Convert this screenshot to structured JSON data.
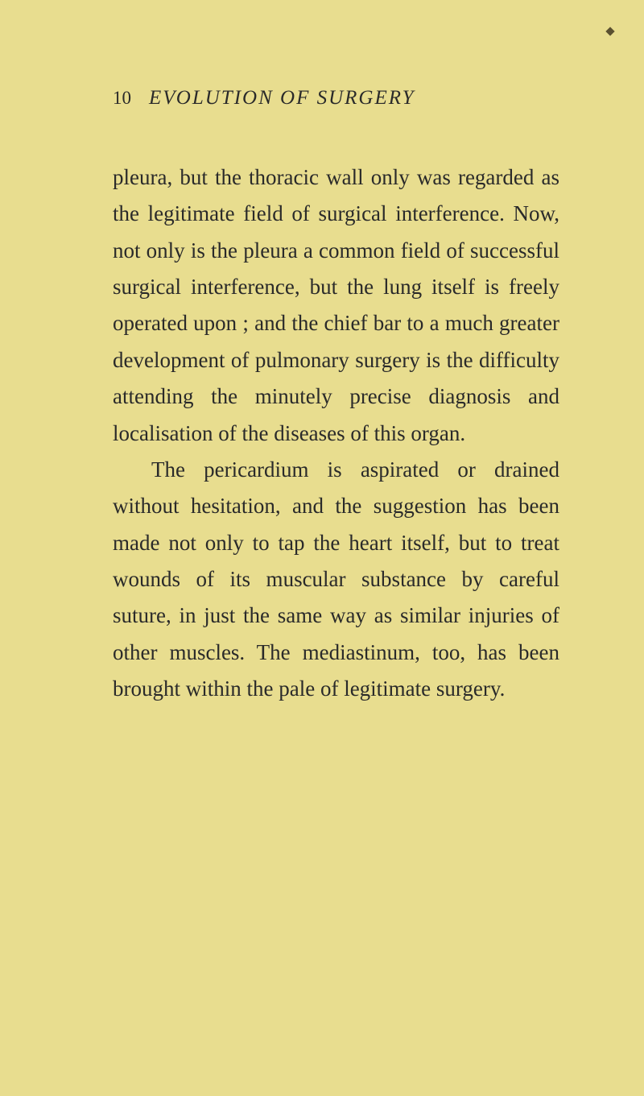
{
  "page_number": "10",
  "header_title": "EVOLUTION OF SURGERY",
  "paragraphs": [
    {
      "text": "pleura, but the thoracic wall only was regarded as the legitimate field of surgical interference. Now, not only is the pleura a common field of successful surgical interference, but the lung itself is freely operated upon ; and the chief bar to a much greater development of pulmonary surgery is the difficulty attending the minutely precise diagnosis and localisation of the diseases of this organ.",
      "indent": false
    },
    {
      "text": "The pericardium is aspirated or drained without hesitation, and the suggestion has been made not only to tap the heart itself, but to treat wounds of its muscular substance by careful suture, in just the same way as similar injuries of other muscles. The mediastinum, too, has been brought within the pale of legitimate surgery.",
      "indent": true
    }
  ],
  "colors": {
    "background": "#e8dd8f",
    "text": "#2a2a2a"
  }
}
